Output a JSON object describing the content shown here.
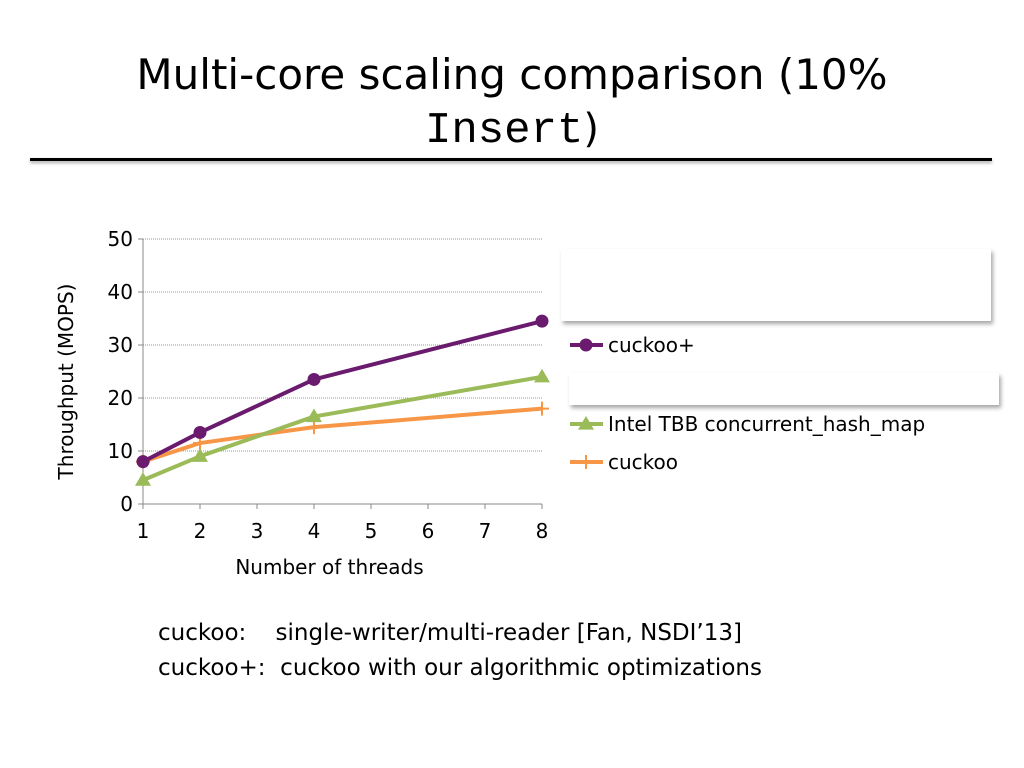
{
  "title": {
    "line1": "Multi-core scaling comparison (10%",
    "line2_mono": "Insert",
    "line2_close": ")"
  },
  "chart_data": {
    "type": "line",
    "xlabel": "Number of threads",
    "ylabel": "Throughput (MOPS)",
    "xlim": [
      1,
      8
    ],
    "ylim": [
      0,
      50
    ],
    "xticks": [
      "1",
      "2",
      "3",
      "4",
      "5",
      "6",
      "7",
      "8"
    ],
    "yticks": [
      "0",
      "10",
      "20",
      "30",
      "40",
      "50"
    ],
    "grid": "horizontal",
    "legend_position": "right",
    "series": [
      {
        "name": "cuckoo+",
        "x": [
          1,
          2,
          4,
          8
        ],
        "y": [
          8,
          13.5,
          23.5,
          34.5
        ],
        "color": "#6a1b6e",
        "marker": "circle"
      },
      {
        "name": "Intel TBB concurrent_hash_map",
        "x": [
          1,
          2,
          4,
          8
        ],
        "y": [
          4.5,
          9,
          16.5,
          24
        ],
        "color": "#9bbb59",
        "marker": "triangle"
      },
      {
        "name": "cuckoo",
        "x": [
          1,
          2,
          4,
          8
        ],
        "y": [
          8,
          11.5,
          14.5,
          18
        ],
        "color": "#f79646",
        "marker": "plus"
      }
    ]
  },
  "notes": [
    {
      "label": "cuckoo:",
      "text": "single-writer/multi-reader [Fan, NSDI’13]"
    },
    {
      "label": "cuckoo+:",
      "text": "cuckoo with our algorithmic optimizations"
    }
  ]
}
